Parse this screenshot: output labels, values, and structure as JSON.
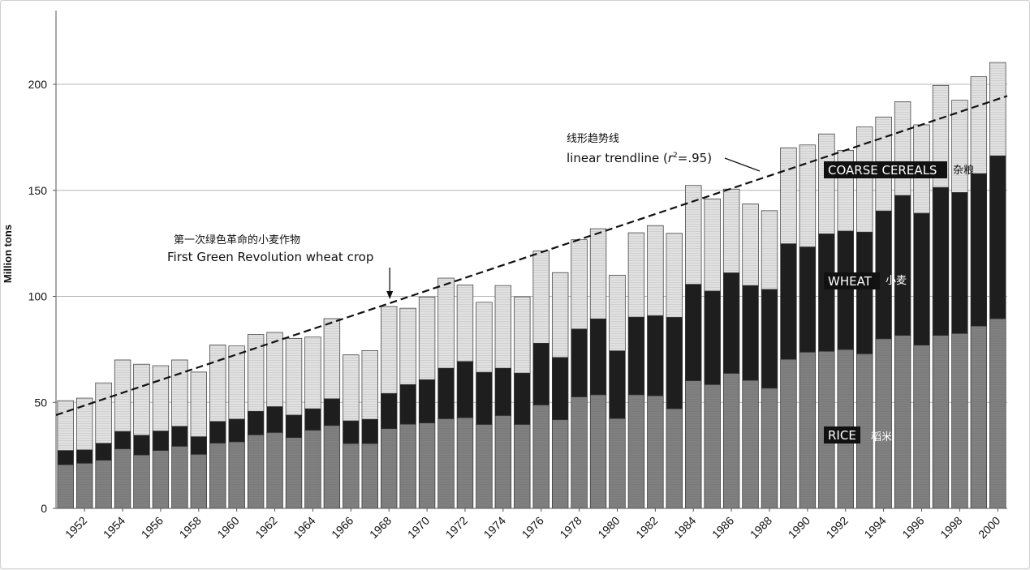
{
  "chart_data": {
    "type": "bar",
    "stacked": true,
    "ylabel": "Million tons",
    "ylim": [
      0,
      230
    ],
    "yticks": [
      0,
      50,
      100,
      150,
      200
    ],
    "grid": true,
    "x": [
      1951,
      1952,
      1953,
      1954,
      1955,
      1956,
      1957,
      1958,
      1959,
      1960,
      1961,
      1962,
      1963,
      1964,
      1965,
      1966,
      1967,
      1968,
      1969,
      1970,
      1971,
      1972,
      1973,
      1974,
      1975,
      1976,
      1977,
      1978,
      1979,
      1980,
      1981,
      1982,
      1983,
      1984,
      1985,
      1986,
      1987,
      1988,
      1989,
      1990,
      1991,
      1992,
      1993,
      1994,
      1995,
      1996,
      1997,
      1998,
      1999,
      2000
    ],
    "xtick_labels": [
      "1952",
      "1954",
      "1956",
      "1958",
      "1960",
      "1962",
      "1964",
      "1966",
      "1968",
      "1970",
      "1972",
      "1974",
      "1976",
      "1978",
      "1980",
      "1982",
      "1984",
      "1986",
      "1988",
      "1990",
      "1992",
      "1994",
      "1996",
      "1998",
      "2000"
    ],
    "series": [
      {
        "name": "RICE",
        "name_zh": "稻米",
        "color": "#808080",
        "values": [
          20.6,
          21.3,
          22.7,
          28.1,
          25.2,
          27.3,
          29.3,
          25.5,
          30.8,
          31.4,
          34.7,
          35.8,
          33.4,
          36.9,
          39.1,
          30.6,
          30.6,
          37.6,
          39.7,
          40.3,
          42.3,
          42.8,
          39.6,
          43.8,
          39.6,
          48.8,
          41.8,
          52.6,
          53.6,
          42.4,
          53.6,
          53.1,
          47.0,
          60.2,
          58.4,
          63.7,
          60.4,
          56.7,
          70.3,
          73.7,
          74.1,
          74.9,
          72.9,
          80.0,
          81.6,
          77.0,
          81.6,
          82.5,
          86.0,
          89.5
        ]
      },
      {
        "name": "WHEAT",
        "name_zh": "小麦",
        "color": "#1e1e1e",
        "values": [
          6.7,
          6.3,
          8.0,
          8.2,
          9.3,
          9.2,
          9.4,
          8.3,
          10.2,
          10.7,
          11.1,
          12.2,
          10.6,
          10.1,
          12.6,
          10.7,
          11.4,
          16.6,
          18.7,
          20.4,
          23.8,
          26.5,
          24.6,
          22.3,
          24.2,
          29.1,
          29.4,
          32.0,
          35.8,
          31.9,
          36.6,
          37.8,
          43.1,
          45.5,
          44.1,
          47.4,
          44.7,
          46.6,
          54.5,
          49.6,
          55.4,
          55.9,
          57.4,
          60.3,
          66.0,
          62.2,
          69.8,
          66.5,
          71.9,
          76.8
        ]
      },
      {
        "name": "COARSE CEREALS",
        "name_zh": "杂粮",
        "color": "#e1e1e1",
        "values": [
          23.5,
          24.4,
          28.5,
          33.7,
          33.5,
          30.8,
          31.3,
          30.5,
          36.1,
          34.5,
          36.2,
          35.0,
          36.2,
          33.8,
          37.8,
          31.1,
          32.4,
          41.0,
          36.0,
          39.0,
          42.5,
          36.1,
          33.0,
          39.0,
          36.0,
          43.5,
          40.0,
          42.1,
          42.5,
          35.7,
          39.8,
          42.5,
          39.6,
          46.6,
          43.5,
          39.5,
          38.5,
          37.1,
          45.3,
          48.1,
          47.1,
          38.1,
          49.6,
          44.3,
          44.2,
          41.7,
          48.1,
          43.5,
          45.7,
          44.0
        ]
      }
    ],
    "trendline": {
      "type": "linear",
      "label": "linear trendline (r²=.95)",
      "label_zh": "线形趋势线",
      "r2": 0.95,
      "start": [
        1951,
        44
      ],
      "end": [
        2000,
        194.5
      ]
    },
    "annotations": [
      {
        "text": "First Green Revolution wheat crop",
        "text_zh": "第一次绿色革命的小麦作物",
        "year": 1968
      }
    ]
  },
  "labels": {
    "ylabel": "Million tons",
    "trend_zh": "线形趋势线",
    "trend_en_a": "linear trendline (",
    "trend_en_r": "r",
    "trend_en_sup": "2",
    "trend_en_b": "=.95)",
    "green_zh": "第一次绿色革命的小麦作物",
    "green_en": "First Green Revolution wheat crop",
    "coarse_en": "COARSE CEREALS",
    "coarse_zh": "杂粮",
    "wheat_en": "WHEAT",
    "wheat_zh": "小麦",
    "rice_en": "RICE",
    "rice_zh": "稻米"
  }
}
